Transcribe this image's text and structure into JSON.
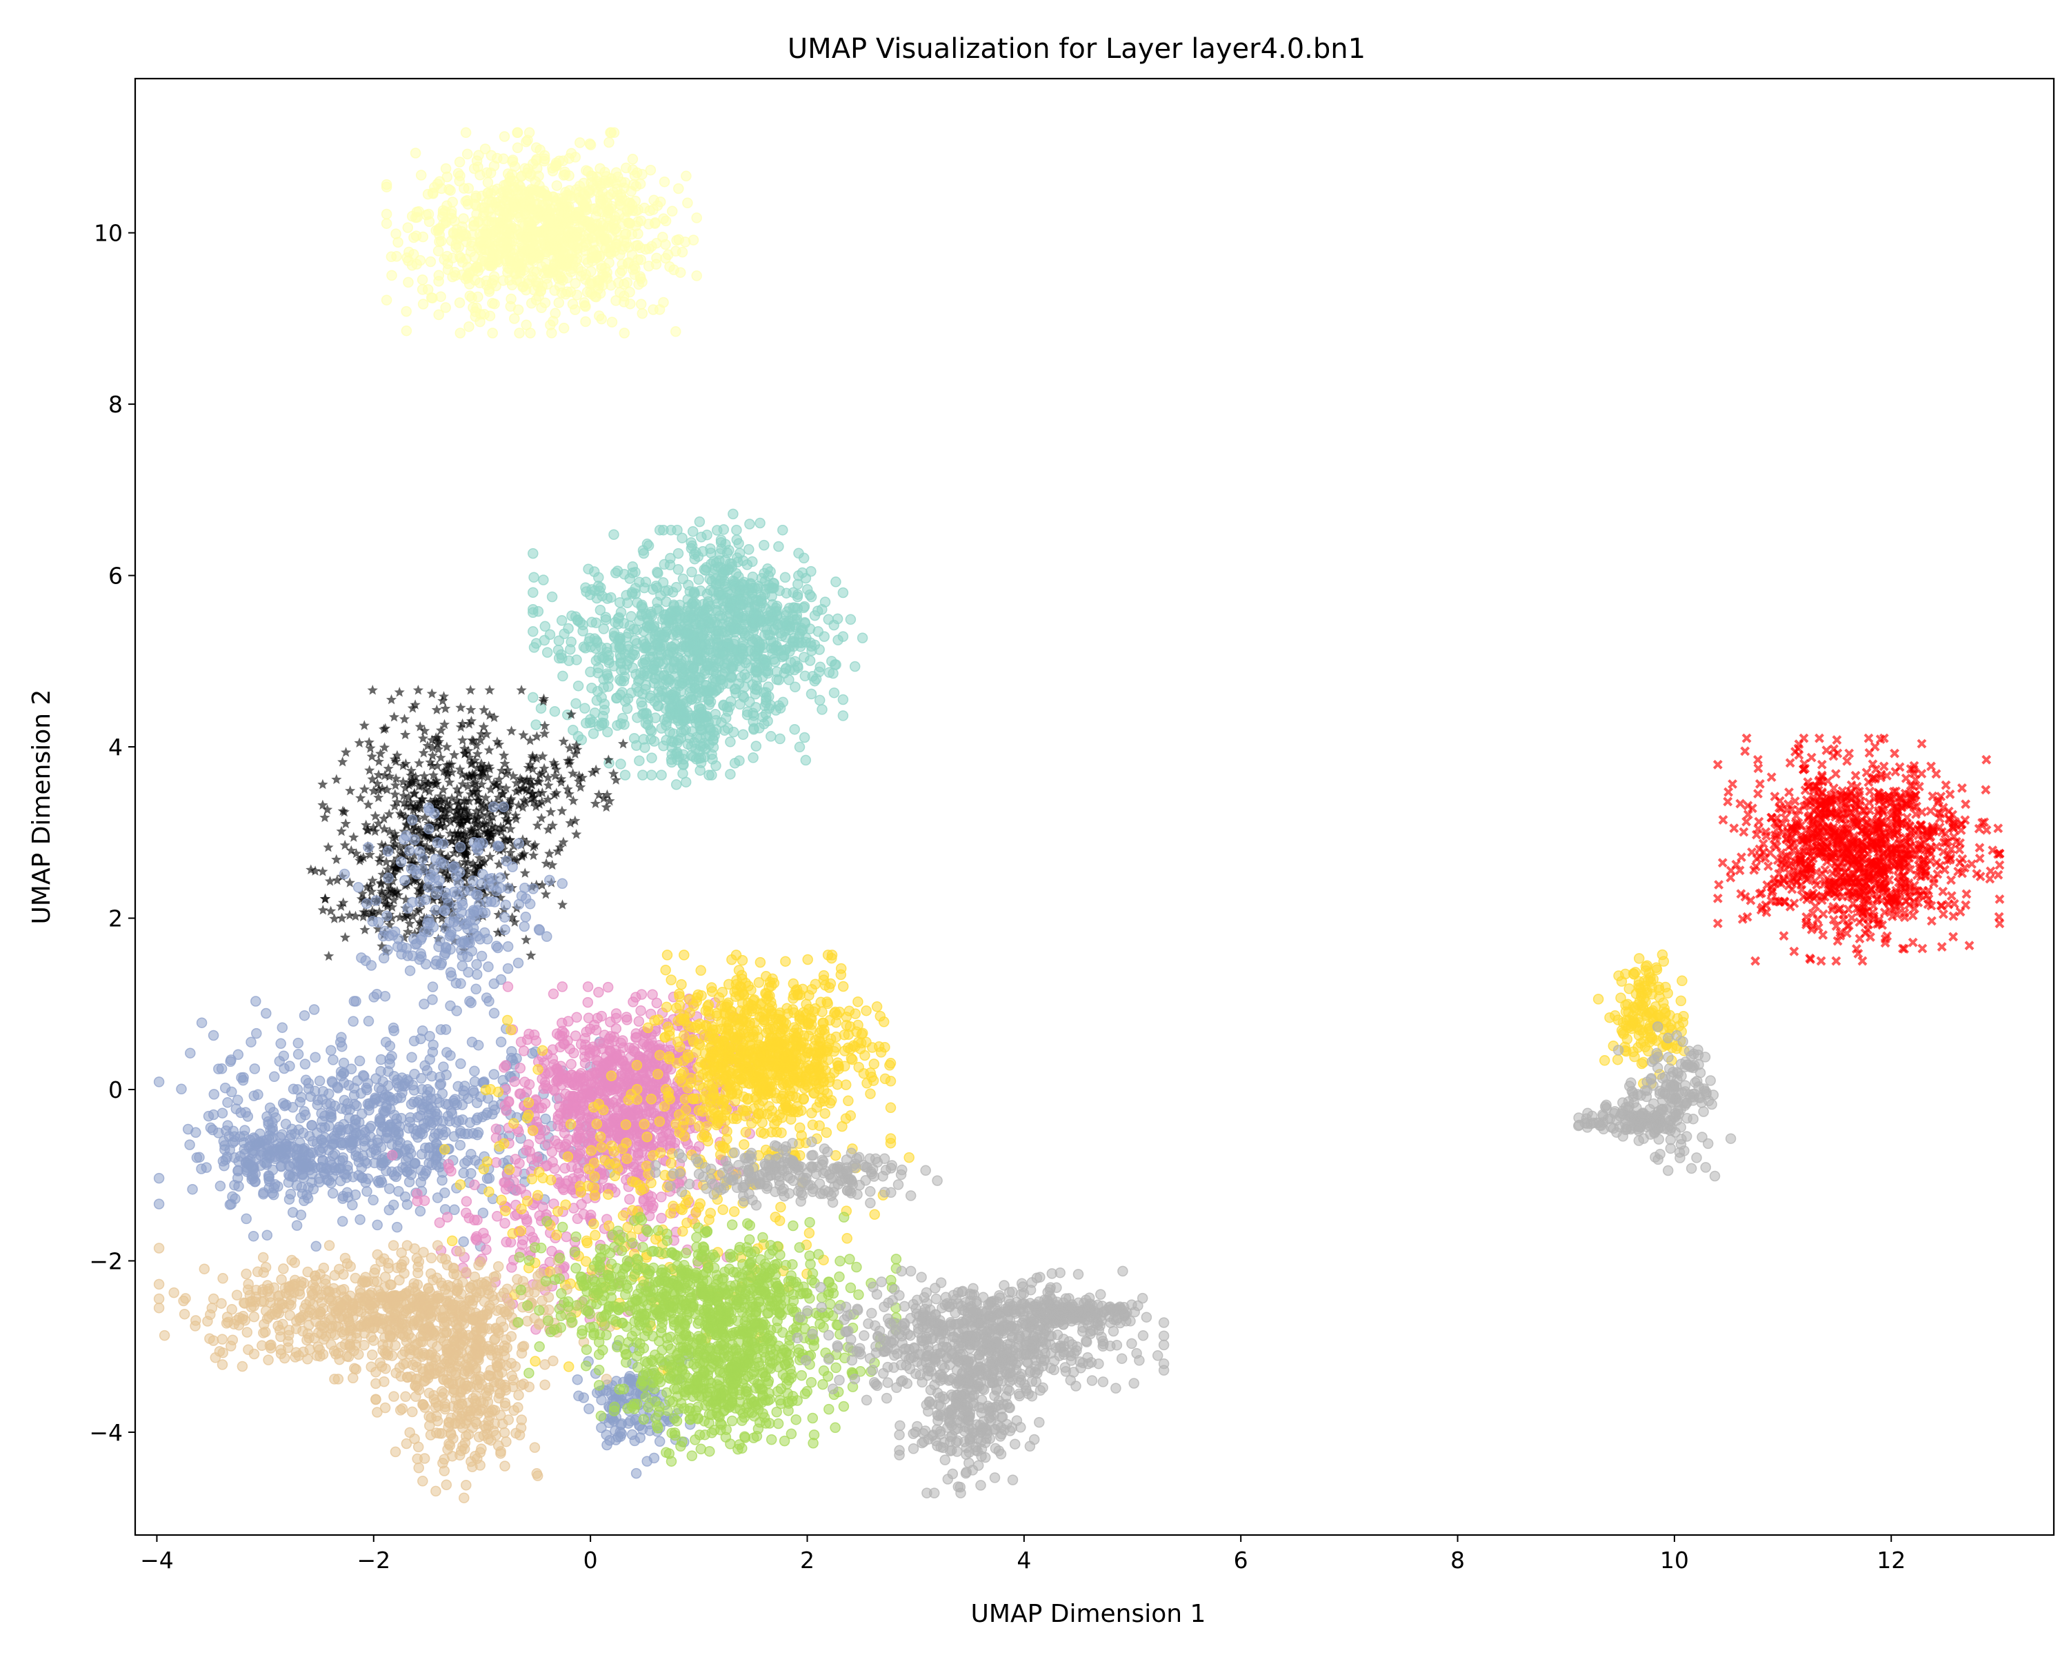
{
  "chart_data": {
    "type": "scatter",
    "title": "UMAP Visualization for Layer layer4.0.bn1",
    "xlabel": "UMAP Dimension 1",
    "ylabel": "UMAP Dimension 2",
    "xlim": [
      -4.2,
      13.5
    ],
    "ylim": [
      -5.2,
      11.8
    ],
    "xticks": [
      -4,
      -2,
      0,
      2,
      4,
      6,
      8,
      10,
      12
    ],
    "yticks": [
      -4,
      -2,
      0,
      2,
      4,
      6,
      8,
      10
    ],
    "xtick_labels": [
      "−4",
      "−2",
      "0",
      "2",
      "4",
      "6",
      "8",
      "10",
      "12"
    ],
    "ytick_labels": [
      "−4",
      "−2",
      "0",
      "2",
      "4",
      "6",
      "8",
      "10"
    ],
    "grid": false,
    "legend": "none",
    "clusters": [
      {
        "color": "#ffffb3",
        "marker": "circle",
        "n": 1100,
        "blobs": [
          [
            -0.45,
            10.0,
            0.55,
            0.45,
            1
          ]
        ]
      },
      {
        "color": "#8dd3c7",
        "marker": "circle",
        "n": 1300,
        "blobs": [
          [
            0.9,
            5.1,
            0.55,
            0.55,
            0.7
          ],
          [
            1.6,
            5.4,
            0.35,
            0.35,
            0.15
          ],
          [
            1.3,
            6.0,
            0.2,
            0.3,
            0.08
          ],
          [
            0.9,
            4.2,
            0.15,
            0.25,
            0.07
          ]
        ]
      },
      {
        "color": "#000000",
        "marker": "star",
        "n": 850,
        "blobs": [
          [
            -1.3,
            3.1,
            0.45,
            0.6,
            0.8
          ],
          [
            -1.9,
            2.2,
            0.3,
            0.25,
            0.12
          ],
          [
            -0.3,
            3.6,
            0.3,
            0.2,
            0.08
          ]
        ]
      },
      {
        "color": "#8da0cb",
        "marker": "circle",
        "n": 1200,
        "blobs": [
          [
            -1.9,
            -0.4,
            0.8,
            0.55,
            0.55
          ],
          [
            -2.8,
            -0.85,
            0.35,
            0.2,
            0.15
          ],
          [
            -1.3,
            2.0,
            0.4,
            0.5,
            0.18
          ],
          [
            0.4,
            -3.7,
            0.2,
            0.3,
            0.12
          ]
        ]
      },
      {
        "color": "#e78ac3",
        "marker": "circle",
        "n": 1100,
        "blobs": [
          [
            0.3,
            -0.1,
            0.45,
            0.5,
            0.8
          ],
          [
            -0.3,
            -1.5,
            0.6,
            0.5,
            0.2
          ]
        ]
      },
      {
        "color": "#ffd92f",
        "marker": "circle",
        "n": 1100,
        "blobs": [
          [
            1.6,
            0.4,
            0.45,
            0.45,
            0.8
          ],
          [
            0.6,
            -1.2,
            0.9,
            0.8,
            0.2
          ]
        ]
      },
      {
        "color": "#e5c494",
        "marker": "circle",
        "n": 1100,
        "blobs": [
          [
            -1.9,
            -2.6,
            0.8,
            0.3,
            0.6
          ],
          [
            -1.2,
            -3.4,
            0.3,
            0.55,
            0.4
          ]
        ]
      },
      {
        "color": "#a6d854",
        "marker": "circle",
        "n": 1200,
        "blobs": [
          [
            1.0,
            -2.4,
            0.7,
            0.35,
            0.55
          ],
          [
            1.25,
            -3.3,
            0.45,
            0.4,
            0.45
          ]
        ]
      },
      {
        "color": "#b3b3b3",
        "marker": "circle",
        "n": 1300,
        "blobs": [
          [
            3.6,
            -2.9,
            0.65,
            0.3,
            0.5
          ],
          [
            3.5,
            -3.8,
            0.25,
            0.35,
            0.2
          ],
          [
            1.9,
            -1.0,
            0.5,
            0.15,
            0.18
          ],
          [
            4.4,
            -2.6,
            0.3,
            0.08,
            0.12
          ]
        ]
      },
      {
        "color": "#ff0000",
        "marker": "x",
        "n": 1100,
        "blobs": [
          [
            11.7,
            2.8,
            0.5,
            0.5,
            1
          ]
        ]
      },
      {
        "color": "#ffd92f",
        "marker": "circle",
        "n": 160,
        "blobs": [
          [
            9.75,
            0.85,
            0.18,
            0.3,
            1
          ]
        ]
      },
      {
        "color": "#b3b3b3",
        "marker": "circle",
        "n": 260,
        "blobs": [
          [
            10.0,
            -0.1,
            0.2,
            0.35,
            0.6
          ],
          [
            9.55,
            -0.35,
            0.2,
            0.08,
            0.4
          ]
        ]
      }
    ]
  }
}
